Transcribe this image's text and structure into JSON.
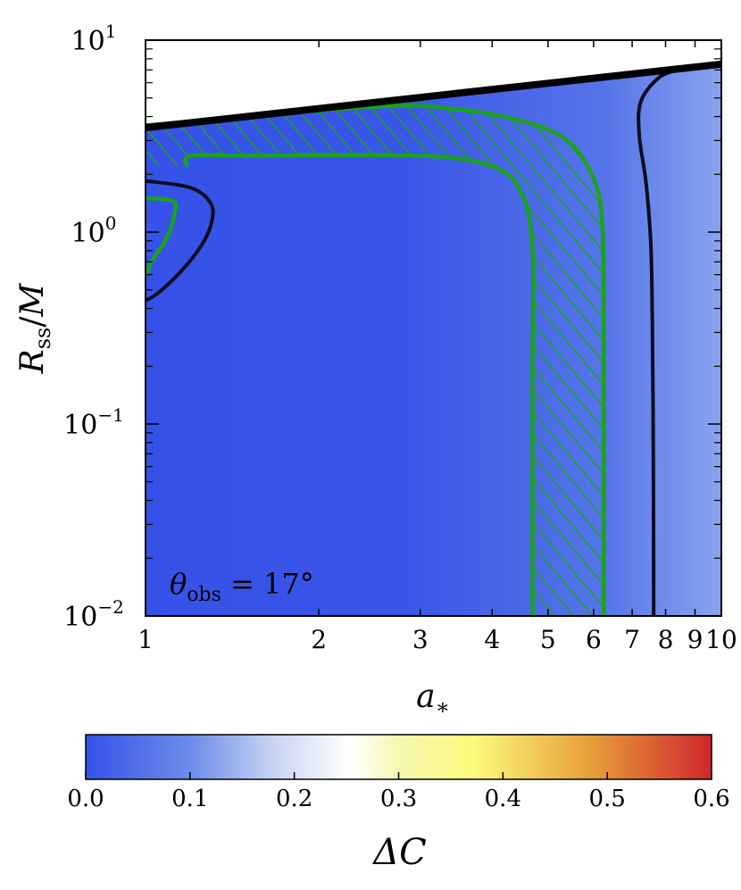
{
  "chart_data": {
    "type": "heatmap",
    "title": "",
    "xlabel": "a_*",
    "ylabel": "R_ss/M",
    "xscale": "log",
    "yscale": "log",
    "xlim": [
      1,
      10
    ],
    "ylim": [
      0.01,
      10
    ],
    "x_ticks": [
      {
        "value": 1,
        "label": "1"
      },
      {
        "value": 2,
        "label": "2"
      },
      {
        "value": 3,
        "label": "3"
      },
      {
        "value": 4,
        "label": "4"
      },
      {
        "value": 5,
        "label": "5"
      },
      {
        "value": 6,
        "label": "6"
      },
      {
        "value": 7,
        "label": "7"
      },
      {
        "value": 8,
        "label": "8"
      },
      {
        "value": 9,
        "label": "9"
      },
      {
        "value": 10,
        "label": "10"
      }
    ],
    "y_ticks": [
      {
        "value": 0.01,
        "base": "10",
        "exp": "−2"
      },
      {
        "value": 0.1,
        "base": "10",
        "exp": "−1"
      },
      {
        "value": 1,
        "base": "10",
        "exp": "0"
      },
      {
        "value": 10,
        "base": "10",
        "exp": "1"
      }
    ],
    "annotation": {
      "theta": "θ",
      "sub": "obs",
      "rest": " = 17°"
    },
    "colorbar": {
      "label": "ΔC",
      "range": [
        0.0,
        0.6
      ],
      "ticks": [
        "0.0",
        "0.1",
        "0.2",
        "0.3",
        "0.4",
        "0.5",
        "0.6"
      ],
      "colormap": [
        "#3552e8",
        "#6f8de9",
        "#ffffff",
        "#fbfa7c",
        "#e9a23a",
        "#d0262d"
      ]
    },
    "colors": {
      "excluded_boundary": "#000000",
      "contour_black": "#0e0b21",
      "contour_green": "#1aa31a",
      "hatch_green": "#1aa31a"
    },
    "excluded_boundary": [
      [
        1,
        3.5
      ],
      [
        10,
        7.5
      ]
    ],
    "black_contour_small_a": [
      [
        1,
        1.85
      ],
      [
        1.2,
        1.7
      ],
      [
        1.3,
        1.4
      ],
      [
        1.3,
        1.1
      ],
      [
        1.25,
        0.85
      ],
      [
        1.15,
        0.62
      ],
      [
        1.05,
        0.48
      ],
      [
        1,
        0.44
      ]
    ],
    "black_contour_large_a": [
      [
        8.5,
        7.1
      ],
      [
        7.8,
        6.4
      ],
      [
        7.25,
        4.8
      ],
      [
        7.2,
        3.2
      ],
      [
        7.4,
        1.8
      ],
      [
        7.55,
        0.8
      ],
      [
        7.6,
        0.2
      ],
      [
        7.62,
        0.05
      ],
      [
        7.63,
        0.01
      ]
    ],
    "green_region_inner": [
      [
        1.18,
        2.2
      ],
      [
        1.2,
        2.5
      ],
      [
        1.5,
        2.5
      ],
      [
        3,
        2.5
      ],
      [
        4,
        2.2
      ],
      [
        4.5,
        1.6
      ],
      [
        4.7,
        0.8
      ],
      [
        4.7,
        0.2
      ],
      [
        4.7,
        0.01
      ]
    ],
    "green_region_outer": [
      [
        1,
        3.6
      ],
      [
        2.5,
        4.5
      ],
      [
        3.4,
        4.4
      ],
      [
        4.5,
        3.8
      ],
      [
        5.4,
        3.0
      ],
      [
        5.95,
        2.0
      ],
      [
        6.2,
        1.2
      ],
      [
        6.25,
        0.3
      ],
      [
        6.25,
        0.01
      ]
    ],
    "green_contour_small_a": [
      [
        1,
        1.5
      ],
      [
        1.12,
        1.45
      ],
      [
        1.12,
        1.2
      ],
      [
        1.1,
        1.0
      ],
      [
        1.07,
        0.85
      ],
      [
        1.03,
        0.72
      ],
      [
        1,
        0.6
      ]
    ],
    "hot_region_center": [
      1,
      1.0
    ]
  }
}
